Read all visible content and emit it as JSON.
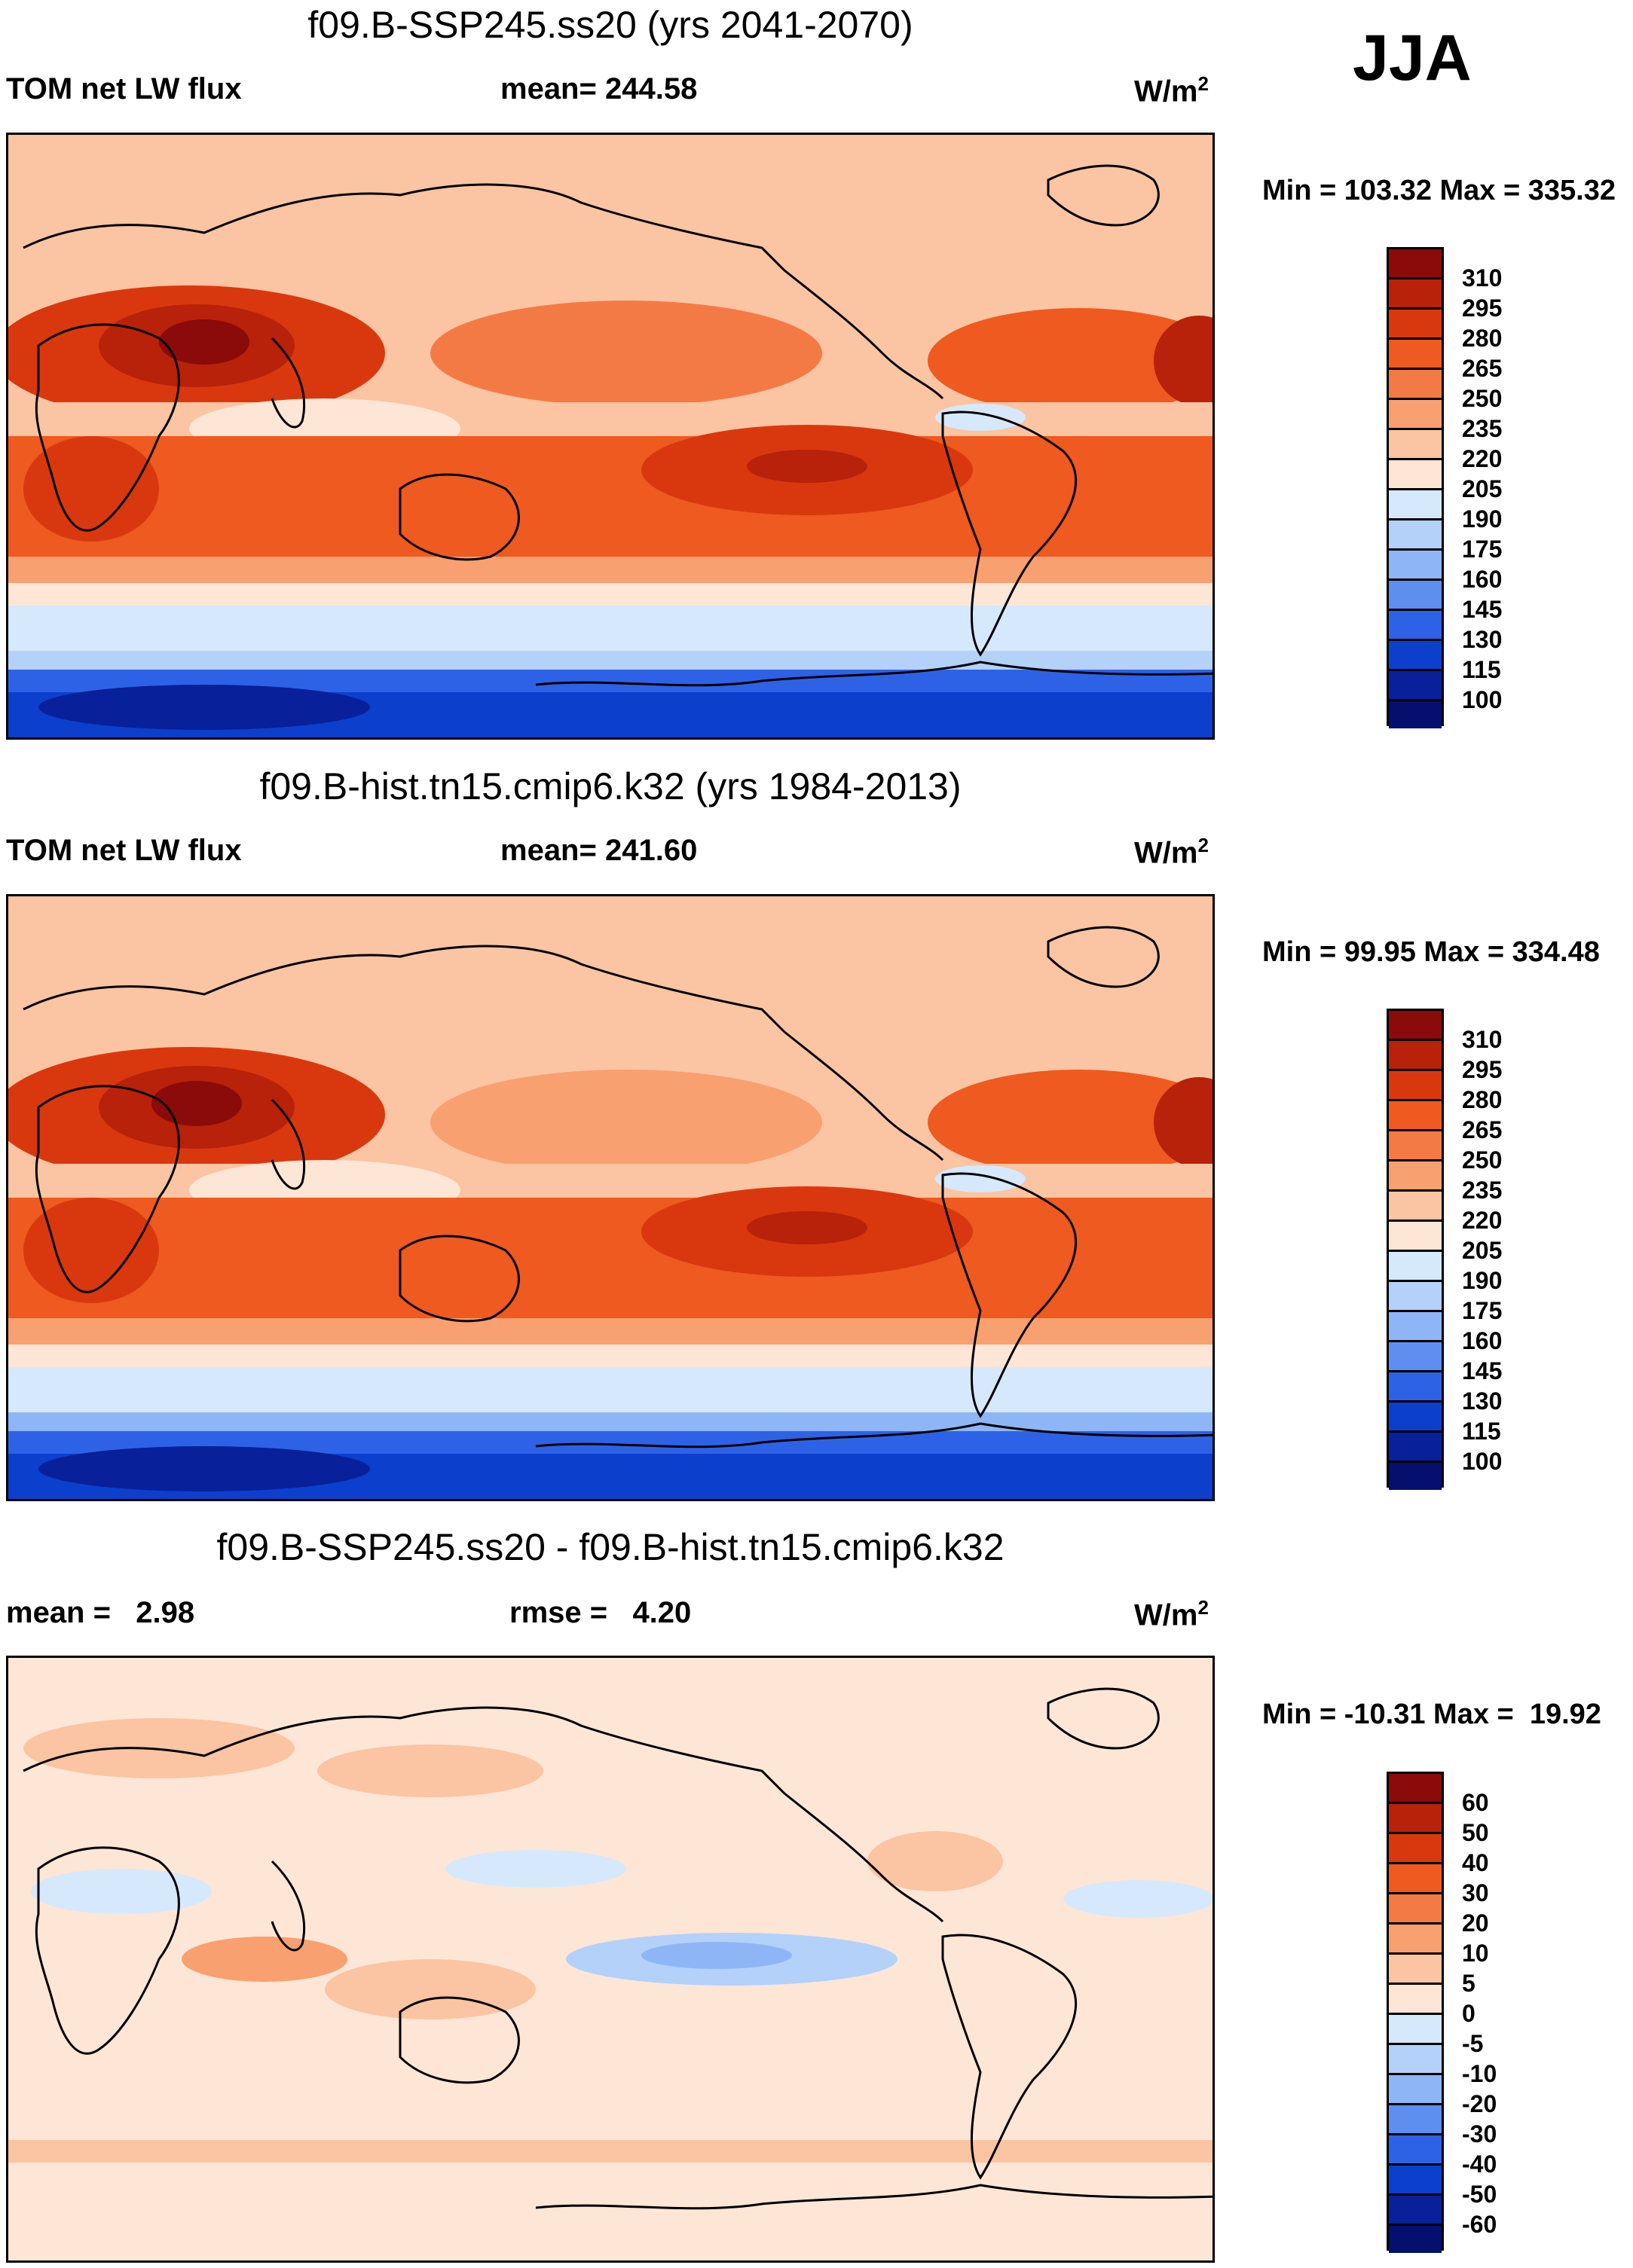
{
  "season": "JJA",
  "panels": [
    {
      "title": "f09.B-SSP245.ss20 (yrs 2041-2070)",
      "left_label": "TOM net LW flux",
      "center_label": "mean= 244.58",
      "units": "W/m",
      "units_sup": "2",
      "minmax": "Min = 103.32 Max = 335.32",
      "levels": [
        "310",
        "295",
        "280",
        "265",
        "250",
        "235",
        "220",
        "205",
        "190",
        "175",
        "160",
        "145",
        "130",
        "115",
        "100"
      ],
      "colors": [
        "#8b0a0a",
        "#b8210a",
        "#d9380f",
        "#ee5a1f",
        "#f47a45",
        "#f8a070",
        "#fbc4a2",
        "#fde6d6",
        "#d6e8fb",
        "#b3d1f9",
        "#8eb6f6",
        "#5d8ef0",
        "#2e62e6",
        "#0c3fcc",
        "#08209a",
        "#050f6e"
      ]
    },
    {
      "title": "f09.B-hist.tn15.cmip6.k32 (yrs 1984-2013)",
      "left_label": "TOM net LW flux",
      "center_label": "mean= 241.60",
      "units": "W/m",
      "units_sup": "2",
      "minmax": "Min =  99.95 Max = 334.48",
      "levels": [
        "310",
        "295",
        "280",
        "265",
        "250",
        "235",
        "220",
        "205",
        "190",
        "175",
        "160",
        "145",
        "130",
        "115",
        "100"
      ],
      "colors": [
        "#8b0a0a",
        "#b8210a",
        "#d9380f",
        "#ee5a1f",
        "#f47a45",
        "#f8a070",
        "#fbc4a2",
        "#fde6d6",
        "#d6e8fb",
        "#b3d1f9",
        "#8eb6f6",
        "#5d8ef0",
        "#2e62e6",
        "#0c3fcc",
        "#08209a",
        "#050f6e"
      ]
    },
    {
      "title": "f09.B-SSP245.ss20 - f09.B-hist.tn15.cmip6.k32",
      "left_label": "mean =   2.98",
      "center_label": "rmse =   4.20",
      "units": "W/m",
      "units_sup": "2",
      "minmax": "Min = -10.31 Max =  19.92",
      "levels": [
        "60",
        "50",
        "40",
        "30",
        "20",
        "10",
        "5",
        "0",
        "-5",
        "-10",
        "-20",
        "-30",
        "-40",
        "-50",
        "-60"
      ],
      "colors": [
        "#8b0a0a",
        "#b8210a",
        "#d9380f",
        "#ee5a1f",
        "#f47a45",
        "#f8a070",
        "#fbc4a2",
        "#fde6d6",
        "#d6e8fb",
        "#b3d1f9",
        "#8eb6f6",
        "#5d8ef0",
        "#2e62e6",
        "#0c3fcc",
        "#08209a",
        "#050f6e"
      ]
    }
  ]
}
